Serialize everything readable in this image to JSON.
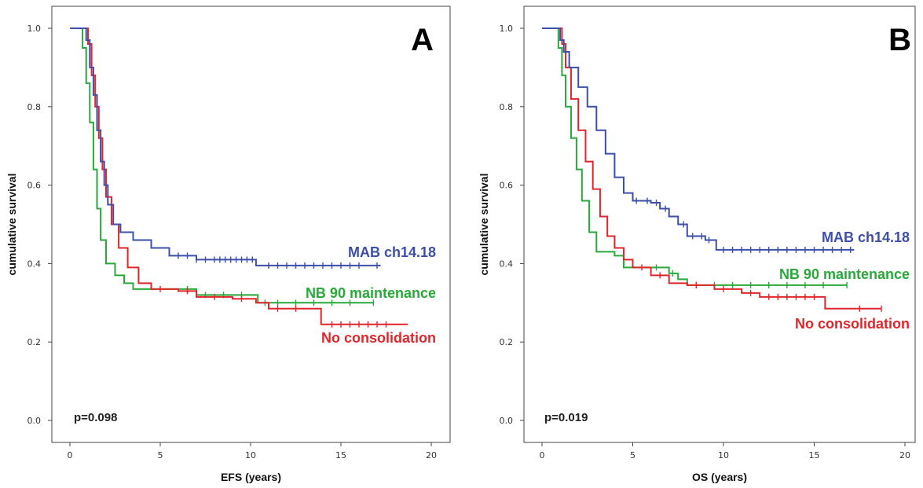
{
  "chart_data": [
    {
      "type": "line",
      "panel_label": "A",
      "xlabel": "EFS (years)",
      "ylabel": "cumulative survival",
      "xlim": [
        0,
        20
      ],
      "ylim": [
        0,
        1.0
      ],
      "x_ticks": [
        0,
        5,
        10,
        15,
        20
      ],
      "y_ticks": [
        0.0,
        0.2,
        0.4,
        0.6,
        0.8,
        1.0
      ],
      "x_tick_labels": [
        "0",
        "5",
        "10",
        "15",
        "20"
      ],
      "y_tick_labels": [
        "0.0",
        "0.2",
        "0.4",
        "0.6",
        "0.8",
        "1.0"
      ],
      "grid": false,
      "annotation": "p=0.098",
      "series": [
        {
          "name": "MAB ch14.18",
          "color": "#3d4fa8",
          "points": [
            [
              0,
              1.0
            ],
            [
              0.7,
              1.0
            ],
            [
              0.9,
              0.97
            ],
            [
              1.1,
              0.9
            ],
            [
              1.3,
              0.83
            ],
            [
              1.5,
              0.74
            ],
            [
              1.7,
              0.66
            ],
            [
              1.9,
              0.6
            ],
            [
              2.1,
              0.55
            ],
            [
              2.4,
              0.5
            ],
            [
              2.8,
              0.48
            ],
            [
              3.5,
              0.46
            ],
            [
              4.5,
              0.44
            ],
            [
              5.5,
              0.42
            ],
            [
              7,
              0.41
            ],
            [
              9,
              0.41
            ],
            [
              10.3,
              0.395
            ],
            [
              17.2,
              0.395
            ]
          ],
          "censor_x": [
            6,
            6.5,
            7,
            7.5,
            8,
            8.3,
            8.6,
            8.9,
            9.2,
            9.5,
            9.8,
            10.1,
            11,
            11.5,
            12,
            12.5,
            13,
            13.5,
            14,
            14.5,
            15,
            15.5,
            16,
            17
          ]
        },
        {
          "name": "NB 90 maintenance",
          "color": "#28a93a",
          "points": [
            [
              0,
              1.0
            ],
            [
              0.6,
              1.0
            ],
            [
              0.7,
              0.95
            ],
            [
              0.9,
              0.86
            ],
            [
              1.1,
              0.76
            ],
            [
              1.3,
              0.64
            ],
            [
              1.5,
              0.54
            ],
            [
              1.7,
              0.46
            ],
            [
              2,
              0.4
            ],
            [
              2.5,
              0.37
            ],
            [
              3,
              0.35
            ],
            [
              3.5,
              0.335
            ],
            [
              6,
              0.335
            ],
            [
              7,
              0.32
            ],
            [
              10.4,
              0.3
            ],
            [
              16.8,
              0.3
            ]
          ],
          "censor_x": [
            6.5,
            7.5,
            8.5,
            9.5,
            10.8,
            11.5,
            12.5,
            13.5,
            14.5,
            15.5,
            16.8
          ]
        },
        {
          "name": "No consolidation",
          "color": "#e0262b",
          "points": [
            [
              0,
              1.0
            ],
            [
              0.8,
              1.0
            ],
            [
              1.0,
              0.96
            ],
            [
              1.2,
              0.88
            ],
            [
              1.4,
              0.8
            ],
            [
              1.6,
              0.72
            ],
            [
              1.8,
              0.64
            ],
            [
              2.0,
              0.57
            ],
            [
              2.3,
              0.5
            ],
            [
              2.7,
              0.44
            ],
            [
              3.2,
              0.39
            ],
            [
              3.8,
              0.35
            ],
            [
              4.5,
              0.335
            ],
            [
              6,
              0.33
            ],
            [
              7,
              0.315
            ],
            [
              9,
              0.31
            ],
            [
              10.3,
              0.3
            ],
            [
              11,
              0.285
            ],
            [
              12,
              0.285
            ],
            [
              13.9,
              0.285
            ],
            [
              13.9,
              0.245
            ],
            [
              18.7,
              0.245
            ]
          ],
          "censor_x": [
            5,
            6.5,
            8,
            9.5,
            11.5,
            12.5,
            14.5,
            15,
            15.5,
            16,
            16.5,
            17,
            17.5
          ]
        }
      ]
    },
    {
      "type": "line",
      "panel_label": "B",
      "xlabel": "OS (years)",
      "ylabel": "cumulative survival",
      "xlim": [
        0,
        20
      ],
      "ylim": [
        0,
        1.0
      ],
      "x_ticks": [
        0,
        5,
        10,
        15,
        20
      ],
      "y_ticks": [
        0.0,
        0.2,
        0.4,
        0.6,
        0.8,
        1.0
      ],
      "x_tick_labels": [
        "0",
        "5",
        "10",
        "15",
        "20"
      ],
      "y_tick_labels": [
        "0.0",
        "0.2",
        "0.4",
        "0.6",
        "0.8",
        "1.0"
      ],
      "grid": false,
      "annotation": "p=0.019",
      "series": [
        {
          "name": "MAB ch14.18",
          "color": "#3d4fa8",
          "points": [
            [
              0,
              1.0
            ],
            [
              0.8,
              1.0
            ],
            [
              1.0,
              0.97
            ],
            [
              1.2,
              0.94
            ],
            [
              1.5,
              0.9
            ],
            [
              2,
              0.85
            ],
            [
              2.5,
              0.8
            ],
            [
              3,
              0.74
            ],
            [
              3.5,
              0.68
            ],
            [
              4,
              0.62
            ],
            [
              4.5,
              0.58
            ],
            [
              5,
              0.56
            ],
            [
              6,
              0.555
            ],
            [
              6.5,
              0.54
            ],
            [
              7,
              0.52
            ],
            [
              7.5,
              0.5
            ],
            [
              8,
              0.47
            ],
            [
              9,
              0.46
            ],
            [
              9.6,
              0.435
            ],
            [
              17.2,
              0.435
            ]
          ],
          "censor_x": [
            5.2,
            5.8,
            6.3,
            6.8,
            7.8,
            8.3,
            8.8,
            9.2,
            10,
            10.5,
            11,
            11.5,
            12,
            12.5,
            13,
            13.5,
            14,
            14.5,
            15,
            15.5,
            16,
            16.5,
            17
          ]
        },
        {
          "name": "NB 90 maintenance",
          "color": "#28a93a",
          "points": [
            [
              0,
              1.0
            ],
            [
              0.7,
              1.0
            ],
            [
              0.9,
              0.95
            ],
            [
              1.1,
              0.88
            ],
            [
              1.3,
              0.8
            ],
            [
              1.6,
              0.72
            ],
            [
              1.9,
              0.64
            ],
            [
              2.2,
              0.56
            ],
            [
              2.6,
              0.48
            ],
            [
              3,
              0.43
            ],
            [
              4,
              0.42
            ],
            [
              4.5,
              0.39
            ],
            [
              6,
              0.39
            ],
            [
              7,
              0.375
            ],
            [
              7.5,
              0.36
            ],
            [
              8,
              0.345
            ],
            [
              16.8,
              0.345
            ]
          ],
          "censor_x": [
            6.3,
            7.2,
            8.5,
            9.5,
            10.5,
            11.5,
            12.5,
            13.5,
            14.5,
            15.5,
            16.8
          ]
        },
        {
          "name": "No consolidation",
          "color": "#e0262b",
          "points": [
            [
              0,
              1.0
            ],
            [
              0.9,
              1.0
            ],
            [
              1.1,
              0.96
            ],
            [
              1.3,
              0.9
            ],
            [
              1.6,
              0.82
            ],
            [
              2,
              0.74
            ],
            [
              2.4,
              0.66
            ],
            [
              2.8,
              0.59
            ],
            [
              3.2,
              0.52
            ],
            [
              3.6,
              0.47
            ],
            [
              4,
              0.44
            ],
            [
              4.5,
              0.41
            ],
            [
              5,
              0.39
            ],
            [
              6,
              0.37
            ],
            [
              7,
              0.35
            ],
            [
              8,
              0.345
            ],
            [
              9.5,
              0.335
            ],
            [
              11,
              0.325
            ],
            [
              12,
              0.315
            ],
            [
              15.5,
              0.315
            ],
            [
              15.6,
              0.285
            ],
            [
              18.7,
              0.285
            ]
          ],
          "censor_x": [
            5.5,
            6.5,
            8.5,
            10,
            11.5,
            12.5,
            13,
            13.5,
            14,
            14.5,
            15,
            17.5,
            18.7
          ]
        }
      ]
    }
  ]
}
